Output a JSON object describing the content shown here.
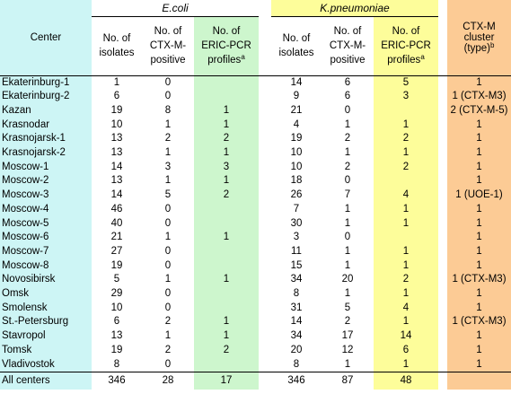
{
  "header": {
    "center": "Center",
    "ecoli": "E.coli",
    "kpneumoniae": "K.pneumoniae",
    "cluster_lines": [
      "CTX-M",
      "cluster",
      "(type)"
    ],
    "cluster_sup": "b",
    "isolates_lines": [
      "No. of",
      "isolates"
    ],
    "positive_lines": [
      "No. of",
      "CTX-M-",
      "positive"
    ],
    "profiles_lines": [
      "No. of",
      "ERIC-PCR",
      "profiles"
    ],
    "profiles_sup": "a"
  },
  "rows": [
    {
      "center": "Ekaterinburg-1",
      "e_iso": "1",
      "e_pos": "0",
      "e_prof": "",
      "k_iso": "14",
      "k_pos": "6",
      "k_prof": "5",
      "cluster": "1"
    },
    {
      "center": "Ekaterinburg-2",
      "e_iso": "6",
      "e_pos": "0",
      "e_prof": "",
      "k_iso": "9",
      "k_pos": "6",
      "k_prof": "3",
      "cluster": "1 (CTX-M3)"
    },
    {
      "center": "Kazan",
      "e_iso": "19",
      "e_pos": "8",
      "e_prof": "1",
      "k_iso": "21",
      "k_pos": "0",
      "k_prof": "",
      "cluster": "2 (CTX-M-5)"
    },
    {
      "center": "Krasnodar",
      "e_iso": "10",
      "e_pos": "1",
      "e_prof": "1",
      "k_iso": "4",
      "k_pos": "1",
      "k_prof": "1",
      "cluster": "1"
    },
    {
      "center": "Krasnojarsk-1",
      "e_iso": "13",
      "e_pos": "2",
      "e_prof": "2",
      "k_iso": "19",
      "k_pos": "2",
      "k_prof": "2",
      "cluster": "1"
    },
    {
      "center": "Krasnojarsk-2",
      "e_iso": "13",
      "e_pos": "1",
      "e_prof": "1",
      "k_iso": "10",
      "k_pos": "1",
      "k_prof": "1",
      "cluster": "1"
    },
    {
      "center": "Moscow-1",
      "e_iso": "14",
      "e_pos": "3",
      "e_prof": "3",
      "k_iso": "10",
      "k_pos": "2",
      "k_prof": "2",
      "cluster": "1"
    },
    {
      "center": "Moscow-2",
      "e_iso": "13",
      "e_pos": "1",
      "e_prof": "1",
      "k_iso": "18",
      "k_pos": "0",
      "k_prof": "",
      "cluster": "1"
    },
    {
      "center": "Moscow-3",
      "e_iso": "14",
      "e_pos": "5",
      "e_prof": "2",
      "k_iso": "26",
      "k_pos": "7",
      "k_prof": "4",
      "cluster": "1 (UOE-1)"
    },
    {
      "center": "Moscow-4",
      "e_iso": "46",
      "e_pos": "0",
      "e_prof": "",
      "k_iso": "7",
      "k_pos": "1",
      "k_prof": "1",
      "cluster": "1"
    },
    {
      "center": "Moscow-5",
      "e_iso": "40",
      "e_pos": "0",
      "e_prof": "",
      "k_iso": "30",
      "k_pos": "1",
      "k_prof": "1",
      "cluster": "1"
    },
    {
      "center": "Moscow-6",
      "e_iso": "21",
      "e_pos": "1",
      "e_prof": "1",
      "k_iso": "3",
      "k_pos": "0",
      "k_prof": "",
      "cluster": "1"
    },
    {
      "center": "Moscow-7",
      "e_iso": "27",
      "e_pos": "0",
      "e_prof": "",
      "k_iso": "11",
      "k_pos": "1",
      "k_prof": "1",
      "cluster": "1"
    },
    {
      "center": "Moscow-8",
      "e_iso": "19",
      "e_pos": "0",
      "e_prof": "",
      "k_iso": "15",
      "k_pos": "1",
      "k_prof": "1",
      "cluster": "1"
    },
    {
      "center": "Novosibirsk",
      "e_iso": "5",
      "e_pos": "1",
      "e_prof": "1",
      "k_iso": "34",
      "k_pos": "20",
      "k_prof": "2",
      "cluster": "1 (CTX-M3)"
    },
    {
      "center": "Omsk",
      "e_iso": "29",
      "e_pos": "0",
      "e_prof": "",
      "k_iso": "8",
      "k_pos": "1",
      "k_prof": "1",
      "cluster": "1"
    },
    {
      "center": "Smolensk",
      "e_iso": "10",
      "e_pos": "0",
      "e_prof": "",
      "k_iso": "31",
      "k_pos": "5",
      "k_prof": "4",
      "cluster": "1"
    },
    {
      "center": "St.-Petersburg",
      "e_iso": "6",
      "e_pos": "2",
      "e_prof": "1",
      "k_iso": "14",
      "k_pos": "2",
      "k_prof": "1",
      "cluster": "1 (CTX-M3)"
    },
    {
      "center": "Stavropol",
      "e_iso": "13",
      "e_pos": "1",
      "e_prof": "1",
      "k_iso": "34",
      "k_pos": "17",
      "k_prof": "14",
      "cluster": "1"
    },
    {
      "center": "Tomsk",
      "e_iso": "19",
      "e_pos": "2",
      "e_prof": "2",
      "k_iso": "20",
      "k_pos": "12",
      "k_prof": "6",
      "cluster": "1"
    },
    {
      "center": "Vladivostok",
      "e_iso": "8",
      "e_pos": "0",
      "e_prof": "",
      "k_iso": "8",
      "k_pos": "1",
      "k_prof": "1",
      "cluster": "1"
    }
  ],
  "total": {
    "center": "All centers",
    "e_iso": "346",
    "e_pos": "28",
    "e_prof": "17",
    "k_iso": "346",
    "k_pos": "87",
    "k_prof": "48",
    "cluster": ""
  },
  "colors": {
    "cyan": "#cdf5f5",
    "green": "#cdf6cd",
    "yellow": "#fdfd9a",
    "orange": "#fccb95"
  }
}
